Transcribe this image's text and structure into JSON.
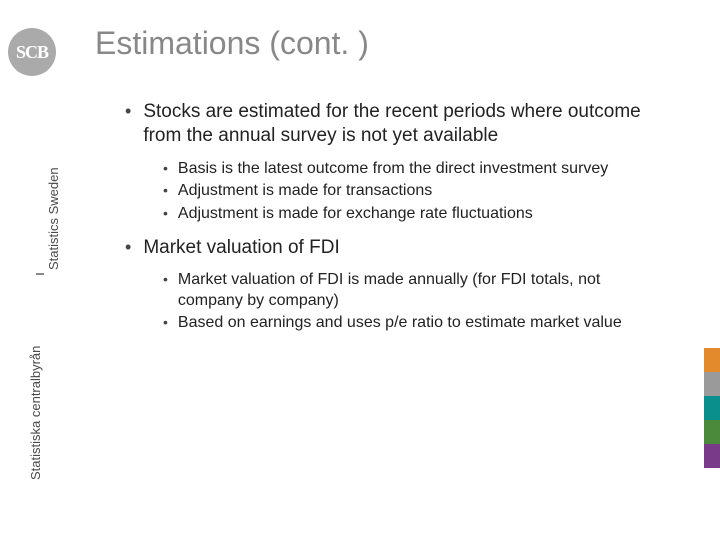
{
  "logo": {
    "text": "SCB"
  },
  "sidebar": {
    "label_top": "Statistics Sweden",
    "label_bottom": "Statistiska centralbyrån"
  },
  "title": "Estimations (cont. )",
  "bullets": {
    "b1": "Stocks are estimated for the recent periods where outcome from the annual survey is not yet available",
    "b1_1": "Basis is the latest outcome from the direct investment survey",
    "b1_2": "Adjustment is made for transactions",
    "b1_3": "Adjustment is made for exchange rate fluctuations",
    "b2": "Market valuation of FDI",
    "b2_1": "Market valuation of FDI is made annually (for FDI totals, not company by company)",
    "b2_2": "Based on earnings and uses p/e ratio to estimate market value"
  },
  "accent_colors": [
    "#e38a2d",
    "#9a9a9a",
    "#0a8f8c",
    "#4a8a3a",
    "#7a3a8a"
  ]
}
